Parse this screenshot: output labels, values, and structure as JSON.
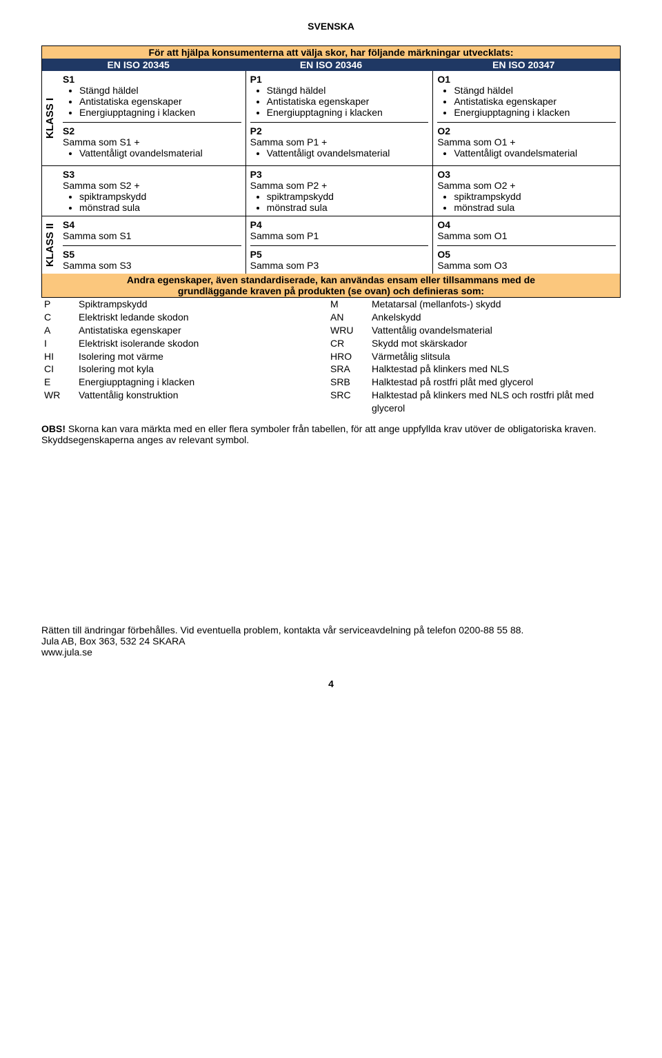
{
  "header": "SVENSKA",
  "title": "För att hjälpa konsumenterna att välja skor, har följande märkningar utvecklats:",
  "standards": [
    "EN ISO 20345",
    "EN ISO 20346",
    "EN ISO 20347"
  ],
  "klass1_label": "KLASS I",
  "klass2_label": "KLASS II",
  "row1": {
    "s": {
      "code": "S1",
      "items": [
        "Stängd häldel",
        "Antistatiska egenskaper",
        "Energiupptagning i klacken"
      ]
    },
    "p": {
      "code": "P1",
      "items": [
        "Stängd häldel",
        "Antistatiska egenskaper",
        "Energiupptagning i klacken"
      ]
    },
    "o": {
      "code": "O1",
      "items": [
        "Stängd häldel",
        "Antistatiska egenskaper",
        "Energiupptagning i klacken"
      ]
    }
  },
  "row2": {
    "s": {
      "code": "S2",
      "sub": "Samma som S1 +",
      "items": [
        "Vattentåligt ovandelsmaterial"
      ]
    },
    "p": {
      "code": "P2",
      "sub": "Samma som P1 +",
      "items": [
        "Vattentåligt ovandelsmaterial"
      ]
    },
    "o": {
      "code": "O2",
      "sub": "Samma som O1 +",
      "items": [
        "Vattentåligt ovandelsmaterial"
      ]
    }
  },
  "row3": {
    "s": {
      "code": "S3",
      "sub": "Samma som S2 +",
      "items": [
        "spiktrampskydd",
        "mönstrad sula"
      ]
    },
    "p": {
      "code": "P3",
      "sub": "Samma som P2 +",
      "items": [
        "spiktrampskydd",
        "mönstrad sula"
      ]
    },
    "o": {
      "code": "O3",
      "sub": "Samma som O2 +",
      "items": [
        "spiktrampskydd",
        "mönstrad sula"
      ]
    }
  },
  "row4": {
    "s": {
      "code": "S4",
      "sub": "Samma som S1"
    },
    "p": {
      "code": "P4",
      "sub": "Samma som P1"
    },
    "o": {
      "code": "O4",
      "sub": "Samma som O1"
    }
  },
  "row5": {
    "s": {
      "code": "S5",
      "sub": "Samma som S3"
    },
    "p": {
      "code": "P5",
      "sub": "Samma som P3"
    },
    "o": {
      "code": "O5",
      "sub": "Samma som O3"
    }
  },
  "banner1": "Andra egenskaper, även standardiserade, kan användas ensam eller tillsammans med de",
  "banner2": "grundläggande kraven på produkten (se ovan) och definieras som:",
  "props_left": [
    {
      "code": "P",
      "name": "Spiktrampskydd"
    },
    {
      "code": "C",
      "name": "Elektriskt ledande skodon"
    },
    {
      "code": "A",
      "name": "Antistatiska egenskaper"
    },
    {
      "code": "I",
      "name": "Elektriskt isolerande skodon"
    },
    {
      "code": "HI",
      "name": "Isolering mot värme"
    },
    {
      "code": "CI",
      "name": "Isolering mot kyla"
    },
    {
      "code": "E",
      "name": "Energiupptagning i klacken"
    },
    {
      "code": "WR",
      "name": "Vattentålig konstruktion"
    }
  ],
  "props_right": [
    {
      "code": "M",
      "name": "Metatarsal (mellanfots-) skydd"
    },
    {
      "code": "AN",
      "name": "Ankelskydd"
    },
    {
      "code": "WRU",
      "name": "Vattentålig ovandelsmaterial"
    },
    {
      "code": "CR",
      "name": "Skydd mot skärskador"
    },
    {
      "code": "HRO",
      "name": "Värmetålig slitsula"
    },
    {
      "code": "SRA",
      "name": "Halktestad på klinkers med NLS"
    },
    {
      "code": "SRB",
      "name": "Halktestad på rostfri plåt med glycerol"
    },
    {
      "code": "SRC",
      "name": "Halktestad på klinkers med NLS och rostfri plåt med glycerol"
    }
  ],
  "obs_label": "OBS!",
  "obs_text": " Skorna kan vara märkta med en eller flera symboler från tabellen, för att ange uppfyllda krav utöver de obligatoriska kraven. Skyddsegenskaperna anges av relevant symbol.",
  "bottom1": "Rätten till ändringar förbehålles. Vid eventuella problem, kontakta vår serviceavdelning på telefon 0200-88 55 88.",
  "bottom2": "Jula AB, Box 363, 532 24 SKARA",
  "bottom3": "www.jula.se",
  "page_num": "4"
}
